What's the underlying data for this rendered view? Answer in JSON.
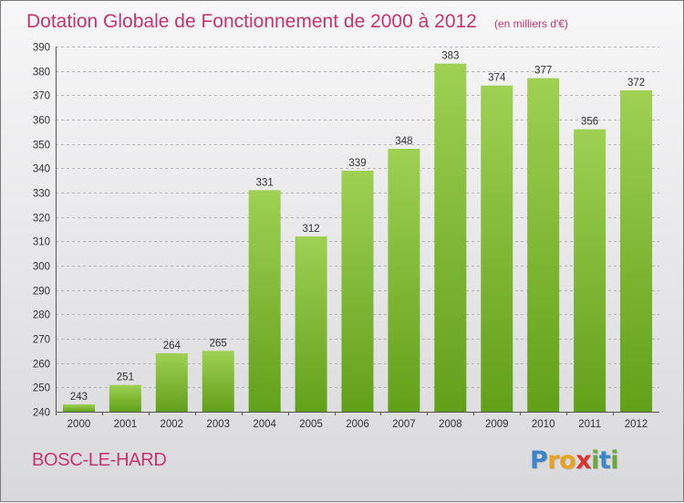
{
  "header": {
    "title": "Dotation Globale de Fonctionnement de 2000 à 2012",
    "unit": "(en milliers d'€)"
  },
  "footer": {
    "commune": "BOSC-LE-HARD",
    "logo_letters": [
      {
        "char": "P",
        "color": "#3a86c8"
      },
      {
        "char": "r",
        "color": "#e8a21e"
      },
      {
        "char": "o",
        "color": "#e8a21e"
      },
      {
        "char": "x",
        "color": "#d9352a"
      },
      {
        "char": "i",
        "color": "#6aa83a"
      },
      {
        "char": "t",
        "color": "#3a86c8"
      },
      {
        "char": "i",
        "color": "#6aa83a"
      }
    ]
  },
  "colors": {
    "bar_light": "#9fd053",
    "bar_dark": "#62a01a",
    "title": "#c8336d"
  },
  "chart_data": {
    "type": "bar",
    "categories": [
      "2000",
      "2001",
      "2002",
      "2003",
      "2004",
      "2005",
      "2006",
      "2007",
      "2008",
      "2009",
      "2010",
      "2011",
      "2012"
    ],
    "values": [
      243,
      251,
      264,
      265,
      331,
      312,
      339,
      348,
      383,
      374,
      377,
      356,
      372
    ],
    "ylim": [
      240,
      390
    ],
    "yticks": [
      240,
      250,
      260,
      270,
      280,
      290,
      300,
      310,
      320,
      330,
      340,
      350,
      360,
      370,
      380,
      390
    ],
    "grid": true
  }
}
